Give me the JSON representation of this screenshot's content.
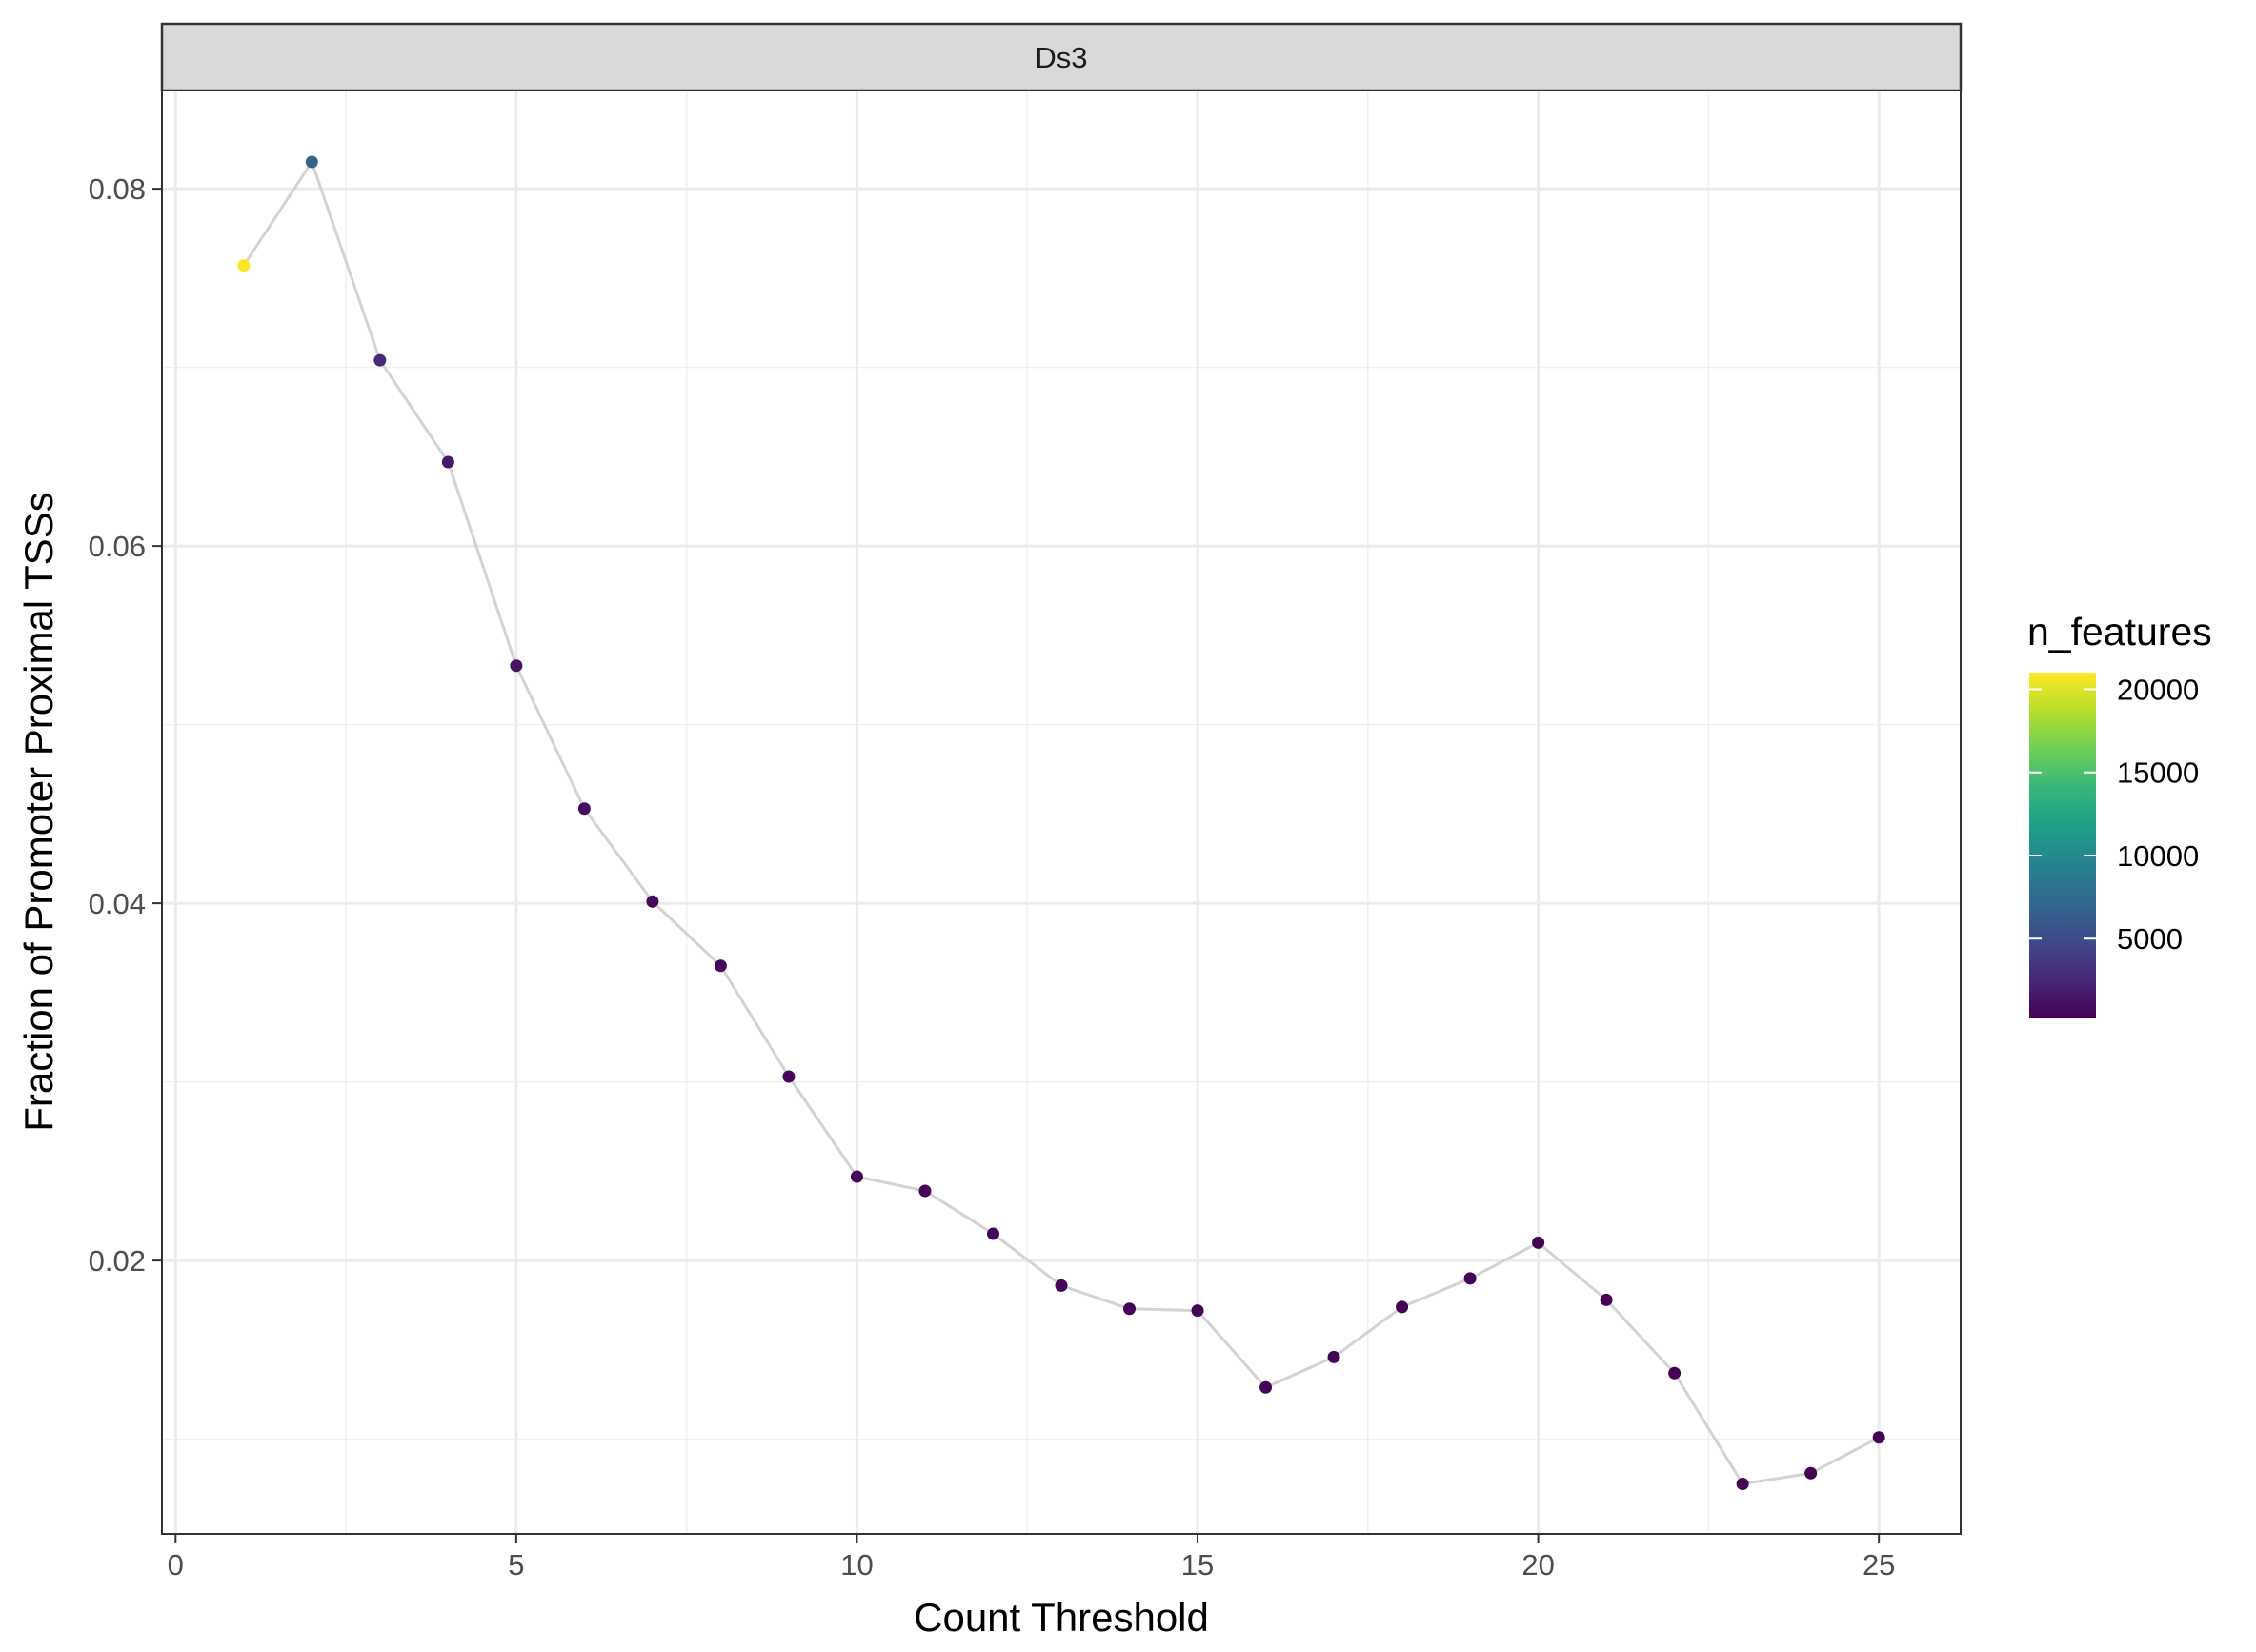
{
  "chart_data": {
    "type": "scatter",
    "facet_label": "Ds3",
    "xlabel": "Count Threshold",
    "ylabel": "Fraction of Promoter Proximal TSSs",
    "xlim": [
      -0.2,
      26.2
    ],
    "ylim": [
      0.0047,
      0.0855
    ],
    "x_ticks": [
      0,
      5,
      10,
      15,
      20,
      25
    ],
    "x_tick_labels": [
      "0",
      "5",
      "10",
      "15",
      "20",
      "25"
    ],
    "y_ticks": [
      0.02,
      0.04,
      0.06,
      0.08
    ],
    "y_tick_labels": [
      "0.02",
      "0.04",
      "0.06",
      "0.08"
    ],
    "grid": true,
    "line_color": "#d3d3d3",
    "color_scale": {
      "name": "viridis",
      "title": "n_features",
      "min": 200,
      "max": 21000,
      "breaks": [
        5000,
        10000,
        15000,
        20000
      ],
      "break_labels": [
        "5000",
        "10000",
        "15000",
        "20000"
      ],
      "stops": [
        "#440154",
        "#482878",
        "#3e4989",
        "#31688e",
        "#26828e",
        "#1f9e89",
        "#35b779",
        "#6ece58",
        "#b5de2b",
        "#fde725"
      ]
    },
    "legend_position": "right",
    "points": [
      {
        "x": 1,
        "y": 0.0757,
        "n_features": 21000
      },
      {
        "x": 2,
        "y": 0.0815,
        "n_features": 7000
      },
      {
        "x": 3,
        "y": 0.0704,
        "n_features": 2600
      },
      {
        "x": 4,
        "y": 0.0647,
        "n_features": 1700
      },
      {
        "x": 5,
        "y": 0.0533,
        "n_features": 1200
      },
      {
        "x": 6,
        "y": 0.0453,
        "n_features": 950
      },
      {
        "x": 7,
        "y": 0.0401,
        "n_features": 800
      },
      {
        "x": 8,
        "y": 0.0365,
        "n_features": 700
      },
      {
        "x": 9,
        "y": 0.0303,
        "n_features": 620
      },
      {
        "x": 10,
        "y": 0.0247,
        "n_features": 560
      },
      {
        "x": 11,
        "y": 0.0239,
        "n_features": 510
      },
      {
        "x": 12,
        "y": 0.0215,
        "n_features": 470
      },
      {
        "x": 13,
        "y": 0.0186,
        "n_features": 440
      },
      {
        "x": 14,
        "y": 0.0173,
        "n_features": 410
      },
      {
        "x": 15,
        "y": 0.0172,
        "n_features": 390
      },
      {
        "x": 16,
        "y": 0.0129,
        "n_features": 370
      },
      {
        "x": 17,
        "y": 0.0146,
        "n_features": 350
      },
      {
        "x": 18,
        "y": 0.0174,
        "n_features": 330
      },
      {
        "x": 19,
        "y": 0.019,
        "n_features": 315
      },
      {
        "x": 20,
        "y": 0.021,
        "n_features": 300
      },
      {
        "x": 21,
        "y": 0.0178,
        "n_features": 290
      },
      {
        "x": 22,
        "y": 0.0137,
        "n_features": 280
      },
      {
        "x": 23,
        "y": 0.0075,
        "n_features": 270
      },
      {
        "x": 24,
        "y": 0.0081,
        "n_features": 260
      },
      {
        "x": 25,
        "y": 0.0101,
        "n_features": 250
      }
    ]
  }
}
